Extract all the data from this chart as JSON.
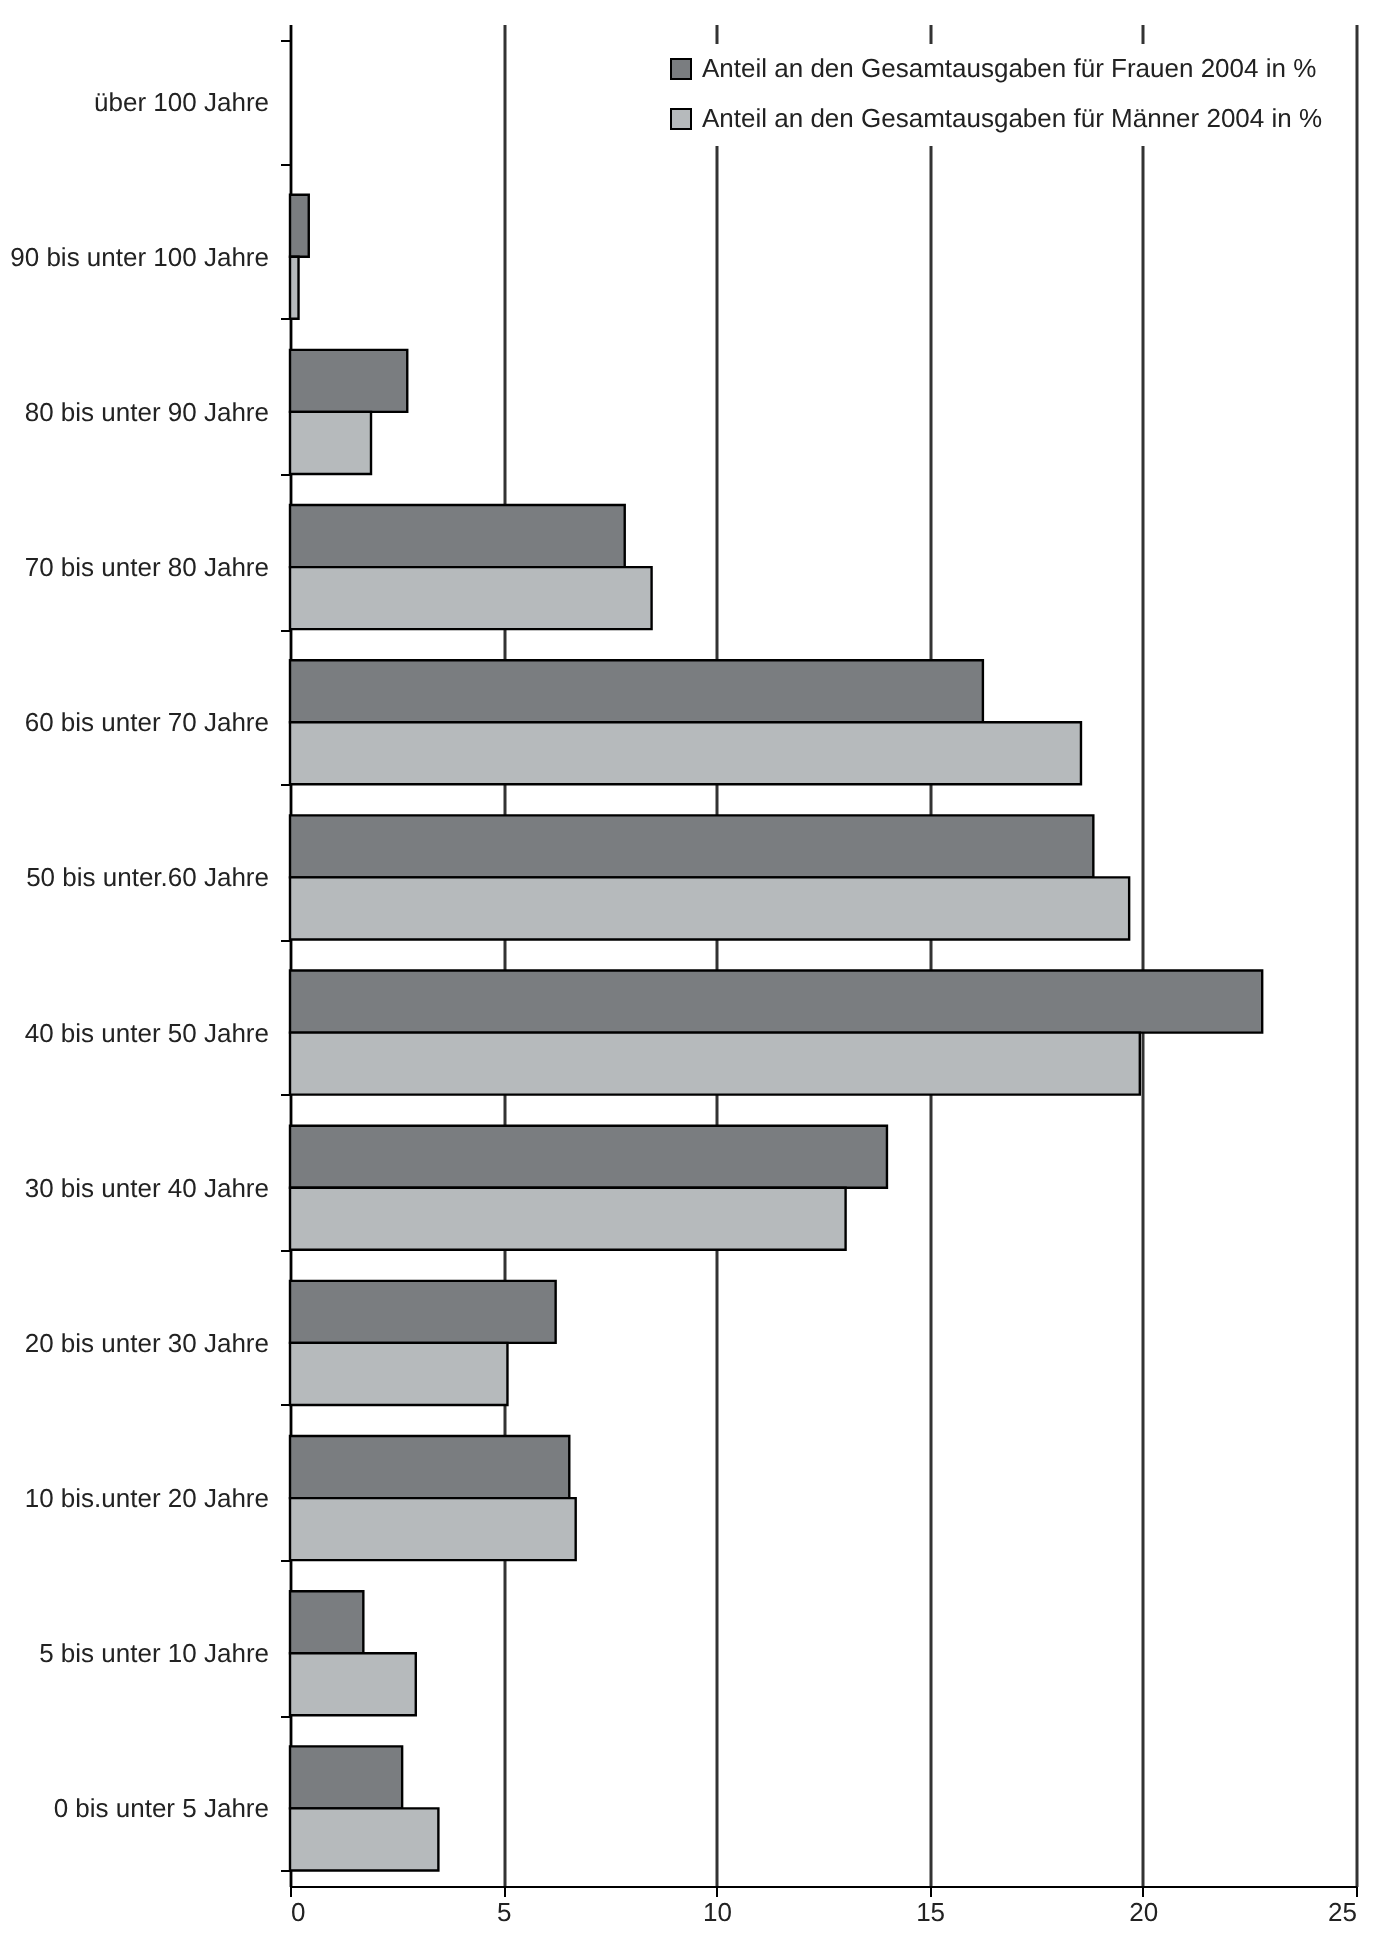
{
  "chart_data": {
    "type": "bar",
    "orientation": "horizontal",
    "categories": [
      "über 100 Jahre",
      "90 bis unter 100 Jahre",
      "80 bis unter 90 Jahre",
      "70 bis unter 80 Jahre",
      "60 bis unter 70 Jahre",
      "50 bis unter.60 Jahre",
      "40 bis unter 50 Jahre",
      "30 bis unter 40 Jahre",
      "20 bis unter 30 Jahre",
      "10 bis.unter 20 Jahre",
      "5 bis unter 10 Jahre",
      "0 bis unter 5 Jahre"
    ],
    "series": [
      {
        "name": "Anteil an den Gesamtausgaben für Frauen 2004 in %",
        "color": "#7a7d80",
        "values": [
          null,
          0.44,
          2.75,
          7.85,
          16.25,
          18.84,
          22.8,
          14.0,
          6.23,
          6.55,
          1.72,
          2.63
        ]
      },
      {
        "name": "Anteil an den Gesamtausgaben für Männer 2004 in %",
        "color": "#b6babc",
        "values": [
          null,
          0.2,
          1.9,
          8.48,
          18.55,
          19.68,
          19.93,
          13.03,
          5.1,
          6.7,
          2.95,
          3.48
        ]
      }
    ],
    "xlim": [
      0,
      25
    ],
    "xticks": [
      0,
      5,
      10,
      15,
      20,
      25
    ],
    "grid": "x",
    "legend": "top right"
  }
}
